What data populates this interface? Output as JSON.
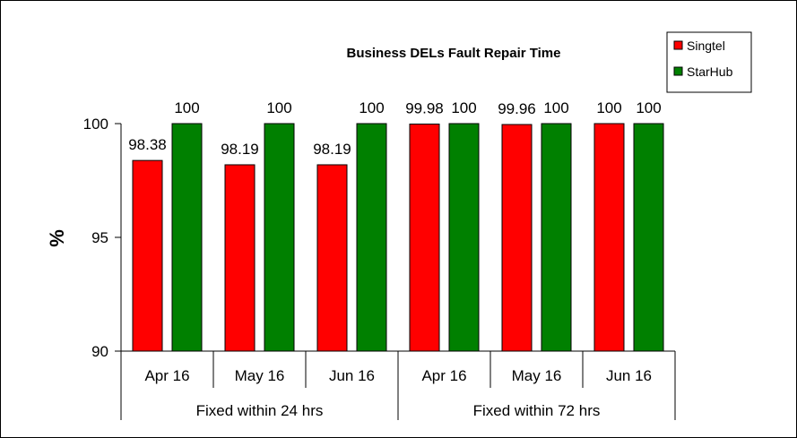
{
  "chart_data": {
    "type": "bar",
    "title": "Business DELs Fault Repair Time",
    "ylabel": "%",
    "xlabel": "",
    "ylim": [
      90,
      100
    ],
    "yticks": [
      90,
      95,
      100
    ],
    "groups": [
      {
        "label": "Fixed within 24 hrs",
        "categories": [
          "Apr 16",
          "May 16",
          "Jun 16"
        ]
      },
      {
        "label": "Fixed within 72 hrs",
        "categories": [
          "Apr 16",
          "May 16",
          "Jun 16"
        ]
      }
    ],
    "categories": [
      "Apr 16",
      "May 16",
      "Jun 16",
      "Apr 16",
      "May 16",
      "Jun 16"
    ],
    "series": [
      {
        "name": "Singtel",
        "color": "#ff0000",
        "values": [
          98.38,
          98.19,
          98.19,
          99.98,
          99.96,
          100
        ]
      },
      {
        "name": "StarHub",
        "color": "#008000",
        "values": [
          100,
          100,
          100,
          100,
          100,
          100
        ]
      }
    ],
    "data_labels": [
      [
        "98.38",
        "98.19",
        "98.19",
        "99.98",
        "99.96",
        "100"
      ],
      [
        "100",
        "100",
        "100",
        "100",
        "100",
        "100"
      ]
    ],
    "legend_position": "top-right",
    "grid": false
  }
}
